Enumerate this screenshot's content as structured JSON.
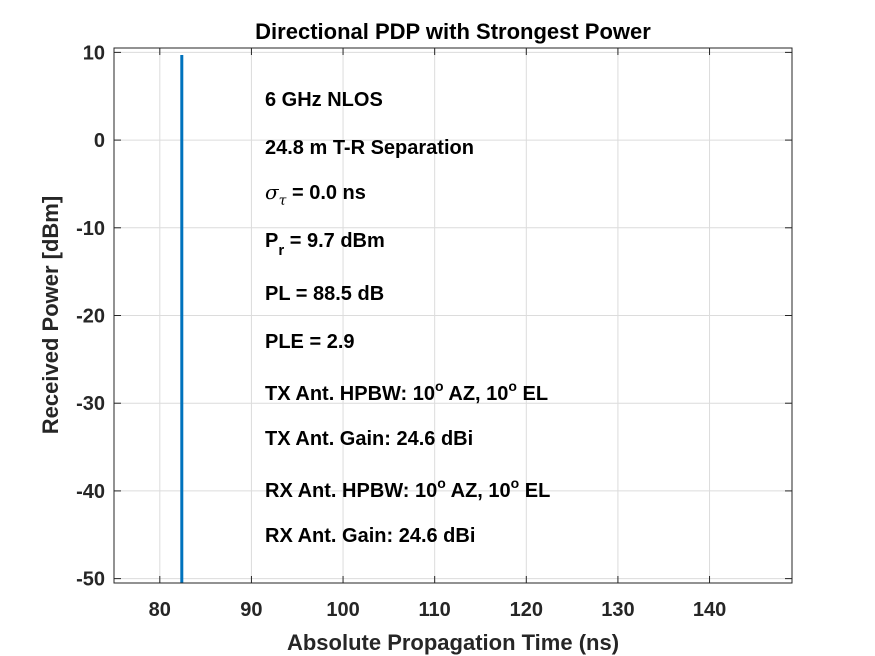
{
  "chart_data": {
    "type": "line",
    "title": "Directional PDP with Strongest Power",
    "xlabel": "Absolute Propagation Time (ns)",
    "ylabel": "Received Power [dBm]",
    "xlim": [
      75,
      149
    ],
    "ylim": [
      -50.5,
      10.5
    ],
    "xticks": [
      80,
      90,
      100,
      110,
      120,
      130,
      140
    ],
    "yticks": [
      10,
      0,
      -10,
      -20,
      -30,
      -40,
      -50
    ],
    "grid": true,
    "legend": "none",
    "series": [
      {
        "color": "#0072BD",
        "x": [
          82.4,
          82.4
        ],
        "y": [
          -50.5,
          9.7
        ]
      }
    ],
    "annotations": {
      "freq": "6 GHz NLOS",
      "separation": "24.8 m T-R Separation",
      "rms_delay_symbol": "σ",
      "rms_delay_sub": "τ",
      "rms_delay_value": " = 0.0 ns",
      "pr_main": "P",
      "pr_sub": "r",
      "pr_value": " = 9.7 dBm",
      "pl": "PL = 88.5 dB",
      "ple": "PLE = 2.9",
      "tx_hpbw_a": "TX Ant. HPBW: 10",
      "tx_hpbw_sup1": "o",
      "tx_hpbw_b": " AZ, 10",
      "tx_hpbw_sup2": "o",
      "tx_hpbw_c": " EL",
      "tx_gain": "TX Ant. Gain: 24.6 dBi",
      "rx_hpbw_a": "RX Ant. HPBW: 10",
      "rx_hpbw_sup1": "o",
      "rx_hpbw_b": " AZ, 10",
      "rx_hpbw_sup2": "o",
      "rx_hpbw_c": " EL",
      "rx_gain": "RX Ant. Gain: 24.6 dBi"
    }
  }
}
